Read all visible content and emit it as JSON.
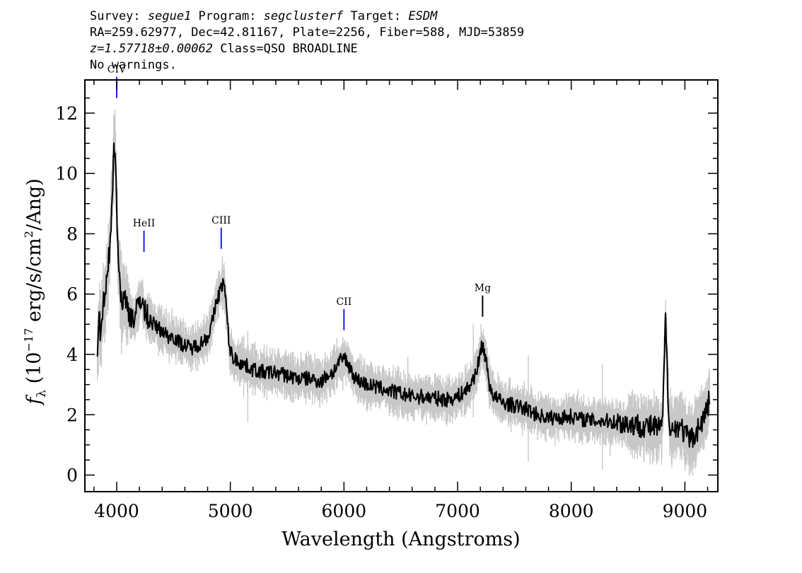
{
  "header": {
    "line1": {
      "survey_label": "Survey: ",
      "survey": "segue1",
      "program_label": " Program: ",
      "program": "segclusterf",
      "target_label": " Target: ",
      "target": "ESDM"
    },
    "line2": "RA=259.62977, Dec=42.81167, Plate=2256, Fiber=588, MJD=53859",
    "line3": {
      "redshift": "z=1.57718±0.00062",
      "class_text": " Class=QSO BROADLINE"
    },
    "line4": "No warnings."
  },
  "chart_data": {
    "type": "line",
    "xlabel": "Wavelength (Angstroms)",
    "ylabel": {
      "f": "f",
      "sub": "λ",
      "pre": " (10",
      "exp": "−17",
      "mid": " erg/s/cm",
      "exp2": "2",
      "post": "/Ang)"
    },
    "xlim": [
      3720,
      9290
    ],
    "ylim": [
      -0.55,
      13.1
    ],
    "xticks": [
      4000,
      5000,
      6000,
      7000,
      8000,
      9000
    ],
    "yticks": [
      0,
      2,
      4,
      6,
      8,
      10,
      12
    ],
    "colors": {
      "flux": "#000000",
      "noise": "#c8c8c8",
      "lines": "#1a1aff",
      "mg_line": "#000000"
    },
    "grid": false,
    "series": [
      {
        "role": "smoothed flux",
        "x": [
          3830,
          3845,
          3860,
          3880,
          3900,
          3920,
          3940,
          3960,
          3975,
          3985,
          3995,
          4010,
          4030,
          4050,
          4070,
          4090,
          4110,
          4130,
          4160,
          4190,
          4220,
          4240,
          4270,
          4300,
          4350,
          4400,
          4450,
          4500,
          4550,
          4600,
          4650,
          4700,
          4750,
          4800,
          4830,
          4860,
          4880,
          4900,
          4920,
          4935,
          4950,
          4970,
          4990,
          5020,
          5060,
          5100,
          5150,
          5200,
          5300,
          5400,
          5500,
          5600,
          5700,
          5800,
          5850,
          5900,
          5950,
          6000,
          6050,
          6100,
          6200,
          6300,
          6400,
          6500,
          6600,
          6700,
          6800,
          6900,
          7000,
          7050,
          7100,
          7150,
          7190,
          7210,
          7230,
          7250,
          7280,
          7320,
          7400,
          7500,
          7600,
          7700,
          7800,
          7900,
          8000,
          8100,
          8200,
          8300,
          8400,
          8500,
          8600,
          8700,
          8800,
          8830,
          8860,
          8900,
          8950,
          9000,
          9050,
          9100,
          9150,
          9200,
          9220
        ],
        "y": [
          3.8,
          5.2,
          4.6,
          5.6,
          5.9,
          6.6,
          7.6,
          9.4,
          10.6,
          11.1,
          9.9,
          7.4,
          6.3,
          5.7,
          5.9,
          5.6,
          5.4,
          5.3,
          5.2,
          5.6,
          6.0,
          5.4,
          5.3,
          5.1,
          4.9,
          4.8,
          4.6,
          4.6,
          4.4,
          4.3,
          4.2,
          4.3,
          4.4,
          4.6,
          4.9,
          5.4,
          5.8,
          6.0,
          6.2,
          6.4,
          6.2,
          5.3,
          4.3,
          3.9,
          3.8,
          3.7,
          3.6,
          3.5,
          3.4,
          3.4,
          3.3,
          3.2,
          3.2,
          3.1,
          3.3,
          3.4,
          3.7,
          3.9,
          3.6,
          3.2,
          3.0,
          2.9,
          2.8,
          2.7,
          2.6,
          2.6,
          2.55,
          2.5,
          2.6,
          2.75,
          2.9,
          3.3,
          3.8,
          4.3,
          4.2,
          3.8,
          3.0,
          2.6,
          2.4,
          2.3,
          2.2,
          2.0,
          1.9,
          1.9,
          1.95,
          1.85,
          1.8,
          1.8,
          1.75,
          1.7,
          1.65,
          1.6,
          1.55,
          5.1,
          1.8,
          1.45,
          1.7,
          1.35,
          1.15,
          1.45,
          1.75,
          2.25,
          2.6
        ]
      }
    ],
    "line_labels": [
      {
        "label": "CIV",
        "x": 4000,
        "y": 12.5
      },
      {
        "label": "HeII",
        "x": 4240,
        "y": 7.4
      },
      {
        "label": "CIII",
        "x": 4920,
        "y": 7.5
      },
      {
        "label": "CII",
        "x": 6000,
        "y": 4.8
      },
      {
        "label": "Mg",
        "x": 7220,
        "y": 5.25
      }
    ]
  }
}
